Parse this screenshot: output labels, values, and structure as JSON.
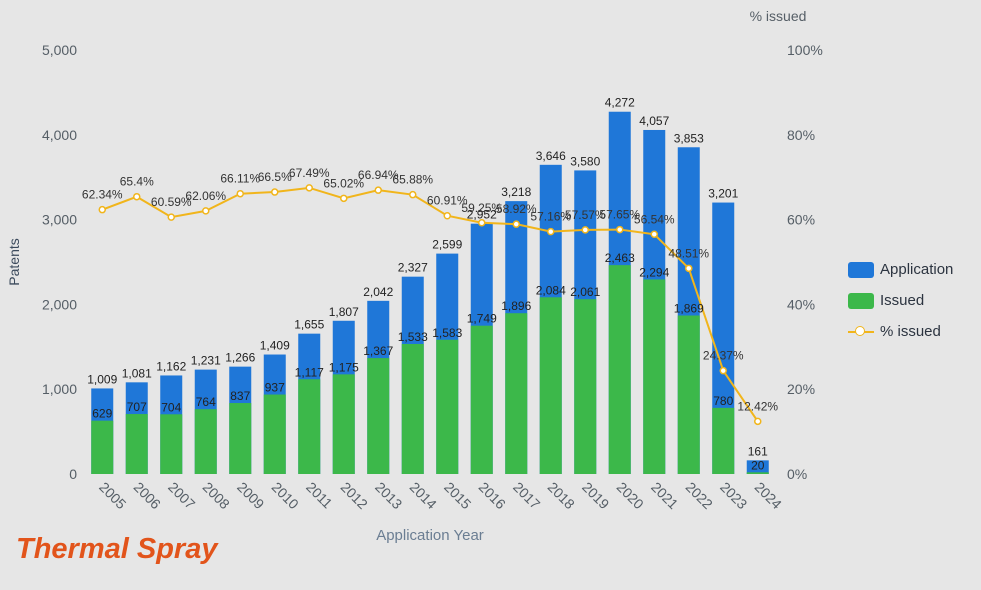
{
  "chart_data": {
    "type": "bar",
    "xlabel": "Application Year",
    "ylabel": "Patents",
    "y2label": "% issued",
    "ylim": [
      0,
      5000
    ],
    "y2lim": [
      0,
      100
    ],
    "yticks": [
      "0",
      "1,000",
      "2,000",
      "3,000",
      "4,000",
      "5,000"
    ],
    "y2ticks": [
      "0%",
      "20%",
      "40%",
      "60%",
      "80%",
      "100%"
    ],
    "categories": [
      "2005",
      "2006",
      "2007",
      "2008",
      "2009",
      "2010",
      "2011",
      "2012",
      "2013",
      "2014",
      "2015",
      "2016",
      "2017",
      "2018",
      "2019",
      "2020",
      "2021",
      "2022",
      "2023",
      "2024"
    ],
    "series": [
      {
        "name": "Application",
        "color": "#1f77d8",
        "values": [
          1009,
          1081,
          1162,
          1231,
          1266,
          1409,
          1655,
          1807,
          2042,
          2327,
          2599,
          2952,
          3218,
          3646,
          3580,
          4272,
          4057,
          3853,
          3201,
          161
        ],
        "labels": [
          "1,009",
          "1,081",
          "1,162",
          "1,231",
          "1,266",
          "1,409",
          "1,655",
          "1,807",
          "2,042",
          "2,327",
          "2,599",
          "2,952",
          "3,218",
          "3,646",
          "3,580",
          "4,272",
          "4,057",
          "3,853",
          "3,201",
          "161"
        ]
      },
      {
        "name": "Issued",
        "color": "#3cb84a",
        "values": [
          629,
          707,
          704,
          764,
          837,
          937,
          1117,
          1175,
          1367,
          1533,
          1583,
          1749,
          1896,
          2084,
          2061,
          2463,
          2294,
          1869,
          780,
          20
        ],
        "labels": [
          "629",
          "707",
          "704",
          "764",
          "837",
          "937",
          "1,117",
          "1,175",
          "1,367",
          "1,533",
          "1,583",
          "1,749",
          "1,896",
          "2,084",
          "2,061",
          "2,463",
          "2,294",
          "1,869",
          "780",
          "20"
        ]
      },
      {
        "name": "% issued",
        "color": "#f1b51b",
        "axis": "right",
        "values": [
          62.34,
          65.4,
          60.59,
          62.06,
          66.11,
          66.5,
          67.49,
          65.02,
          66.94,
          65.88,
          60.91,
          59.25,
          58.92,
          57.16,
          57.57,
          57.65,
          56.54,
          48.51,
          24.37,
          12.42
        ],
        "labels": [
          "62.34%",
          "65.4%",
          "60.59%",
          "62.06%",
          "66.11%",
          "66.5%",
          "67.49%",
          "65.02%",
          "66.94%",
          "65.88%",
          "60.91%",
          "59.25%",
          "58.92%",
          "57.16%",
          "57.57%",
          "57.65%",
          "56.54%",
          "48.51%",
          "24.37%",
          "12.42%"
        ]
      }
    ],
    "legend_position": "right"
  },
  "brand_text": "Thermal Spray"
}
